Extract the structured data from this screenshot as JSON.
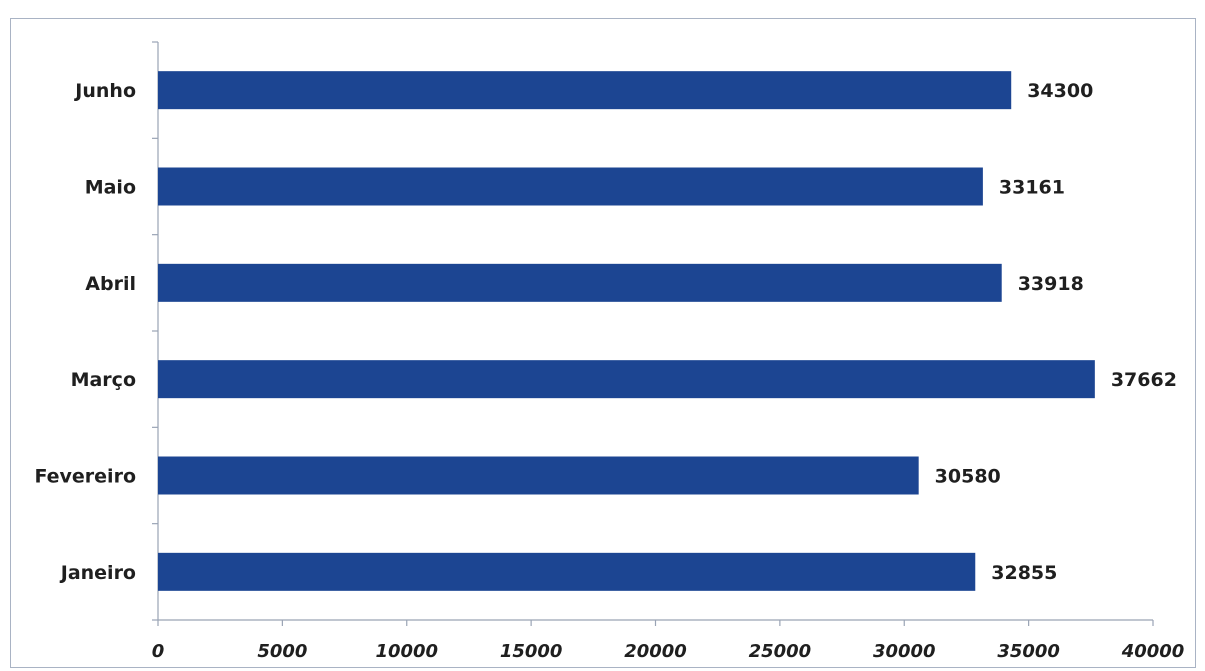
{
  "chart_data": {
    "type": "bar",
    "orientation": "horizontal",
    "categories": [
      "Janeiro",
      "Fevereiro",
      "Março",
      "Abril",
      "Maio",
      "Junho"
    ],
    "values": [
      32855,
      30580,
      37662,
      33918,
      33161,
      34300
    ],
    "data_labels": [
      "32855",
      "30580",
      "37662",
      "33918",
      "33161",
      "34300"
    ],
    "title": "",
    "xlabel": "",
    "ylabel": "",
    "xlim": [
      0,
      40000
    ],
    "x_ticks": [
      0,
      5000,
      10000,
      15000,
      20000,
      25000,
      30000,
      35000,
      40000
    ],
    "x_tick_labels": [
      "0",
      "5000",
      "10000",
      "15000",
      "20000",
      "25000",
      "30000",
      "35000",
      "40000"
    ],
    "grid": false,
    "legend": "none",
    "bar_color": "#1c4592"
  }
}
